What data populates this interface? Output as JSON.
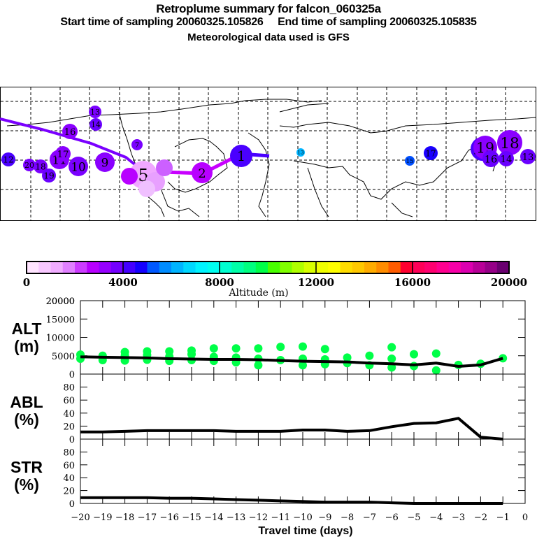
{
  "header": {
    "title": "Retroplume summary for falcon_060325a",
    "start_label": "Start time of sampling 20060325.105826",
    "end_label": "End time of sampling 20060325.105835",
    "met_label": "Meteorological data used is GFS"
  },
  "map": {
    "description": "Retroplume cluster centroids on world map, colored by altitude, labeled by days before sampling",
    "track_color_segments": [
      "#7a00ff",
      "#c800ff",
      "#cc44ff"
    ],
    "clusters": [
      {
        "label": "1",
        "region": "Atlantic",
        "color": "#4a00ff",
        "size": "large"
      },
      {
        "label": "2",
        "region": "Atlantic",
        "color": "#b800ff",
        "size": "large"
      },
      {
        "label": "5",
        "region": "Gulf of Mexico",
        "color": "#f0a8ff",
        "size": "large"
      },
      {
        "label": "7",
        "region": "Canada",
        "color": "#7a00ff",
        "size": "small"
      },
      {
        "label": "9",
        "region": "Pacific",
        "color": "#8a00ff",
        "size": "large"
      },
      {
        "label": "10",
        "region": "Pacific",
        "color": "#7a00ff",
        "size": "large"
      },
      {
        "label": "11",
        "region": "Pacific",
        "color": "#8a00ff",
        "size": "large"
      },
      {
        "label": "12",
        "region": "Pacific",
        "color": "#4a00ff",
        "size": "medium"
      },
      {
        "label": "13",
        "region": "Pacific",
        "color": "#7a00ff",
        "size": "medium"
      },
      {
        "label": "14",
        "region": "Pacific",
        "color": "#6a00ff",
        "size": "medium"
      },
      {
        "label": "16",
        "region": "Pacific",
        "color": "#8a00ff",
        "size": "medium"
      },
      {
        "label": "17",
        "region": "Pacific",
        "color": "#8a00ff",
        "size": "medium"
      },
      {
        "label": "18",
        "region": "Pacific",
        "color": "#7a00ff",
        "size": "medium"
      },
      {
        "label": "19",
        "region": "Pacific",
        "color": "#6a00ff",
        "size": "medium"
      },
      {
        "label": "20",
        "region": "Pacific",
        "color": "#7a00ff",
        "size": "medium"
      },
      {
        "label": "13",
        "region": "Central Asia",
        "color": "#00b4ff",
        "size": "small"
      },
      {
        "label": "15",
        "region": "Asia",
        "color": "#0050ff",
        "size": "small"
      },
      {
        "label": "17",
        "region": "East Asia",
        "color": "#1a00ff",
        "size": "medium"
      },
      {
        "label": "20",
        "region": "Japan",
        "color": "#4a00ff",
        "size": "large"
      },
      {
        "label": "19",
        "region": "NW Pacific",
        "color": "#8a00ff",
        "size": "large"
      },
      {
        "label": "18",
        "region": "NW Pacific",
        "color": "#8a00ff",
        "size": "large"
      },
      {
        "label": "16",
        "region": "NW Pacific",
        "color": "#6a00ff",
        "size": "medium"
      },
      {
        "label": "14",
        "region": "NW Pacific",
        "color": "#6a00ff",
        "size": "medium"
      },
      {
        "label": "13",
        "region": "NW Pacific",
        "color": "#6a00ff",
        "size": "medium"
      }
    ]
  },
  "colorbar": {
    "title": "Altitude (m)",
    "tick_labels": [
      "0",
      "4000",
      "8000",
      "12000",
      "16000",
      "20000"
    ],
    "colors": [
      "#ffe4ff",
      "#f8c8ff",
      "#f0acff",
      "#e080ff",
      "#cc3cff",
      "#b800ff",
      "#9600ff",
      "#7400ff",
      "#4400ff",
      "#1400ff",
      "#0058ff",
      "#008cff",
      "#00b4ff",
      "#00d8ff",
      "#00f4ff",
      "#00fff0",
      "#00ffd0",
      "#00ffa8",
      "#00ff80",
      "#00ff48",
      "#48ff00",
      "#80ff00",
      "#b0ff00",
      "#d8ff00",
      "#f0ff00",
      "#ffff00",
      "#ffdc00",
      "#ffc800",
      "#ffac00",
      "#ff8c00",
      "#ff5c00",
      "#ff0030",
      "#ff0058",
      "#ff0070",
      "#ff0090",
      "#f800a8",
      "#dc00b0",
      "#b80098",
      "#960088",
      "#6a0070"
    ]
  },
  "chart_data": [
    {
      "type": "line",
      "panel": "ALT",
      "ylabel_line1": "ALT",
      "ylabel_line2": "(m)",
      "ylim": [
        0,
        20000
      ],
      "yticks": [
        0,
        5000,
        10000,
        15000,
        20000
      ],
      "ytick_labels": [
        "0",
        "5000",
        "10000",
        "15000",
        "20000"
      ],
      "xlim": [
        -20,
        0
      ],
      "x": [
        -20,
        -19,
        -18,
        -17,
        -16,
        -15,
        -14,
        -13,
        -12,
        -11,
        -10,
        -9,
        -8,
        -7,
        -6,
        -5,
        -4,
        -3,
        -2,
        -1
      ],
      "series": [
        {
          "name": "mean altitude",
          "color": "#000000",
          "values": [
            4700,
            4600,
            4500,
            4400,
            4200,
            4100,
            4000,
            4000,
            3900,
            3700,
            3500,
            3400,
            3300,
            3000,
            2800,
            2500,
            3000,
            2100,
            2500,
            4300
          ]
        }
      ],
      "scatter": {
        "name": "cluster altitudes",
        "color": "#00ff48",
        "points": [
          {
            "x": -20,
            "y": 4200
          },
          {
            "x": -20,
            "y": 5300
          },
          {
            "x": -19,
            "y": 3800
          },
          {
            "x": -19,
            "y": 5000
          },
          {
            "x": -18,
            "y": 3700
          },
          {
            "x": -18,
            "y": 5000
          },
          {
            "x": -18,
            "y": 6000
          },
          {
            "x": -17,
            "y": 3900
          },
          {
            "x": -17,
            "y": 5200
          },
          {
            "x": -17,
            "y": 6200
          },
          {
            "x": -16,
            "y": 3600
          },
          {
            "x": -16,
            "y": 4800
          },
          {
            "x": -16,
            "y": 6200
          },
          {
            "x": -15,
            "y": 3800
          },
          {
            "x": -15,
            "y": 5400
          },
          {
            "x": -15,
            "y": 6400
          },
          {
            "x": -14,
            "y": 3600
          },
          {
            "x": -14,
            "y": 4700
          },
          {
            "x": -14,
            "y": 7000
          },
          {
            "x": -13,
            "y": 3200
          },
          {
            "x": -13,
            "y": 4500
          },
          {
            "x": -13,
            "y": 7000
          },
          {
            "x": -12,
            "y": 2400
          },
          {
            "x": -12,
            "y": 4200
          },
          {
            "x": -12,
            "y": 7000
          },
          {
            "x": -11,
            "y": 3800
          },
          {
            "x": -11,
            "y": 7400
          },
          {
            "x": -10,
            "y": 2400
          },
          {
            "x": -10,
            "y": 4200
          },
          {
            "x": -10,
            "y": 7500
          },
          {
            "x": -9,
            "y": 2700
          },
          {
            "x": -9,
            "y": 4000
          },
          {
            "x": -9,
            "y": 6800
          },
          {
            "x": -8,
            "y": 3000
          },
          {
            "x": -8,
            "y": 4500
          },
          {
            "x": -7,
            "y": 2400
          },
          {
            "x": -7,
            "y": 5000
          },
          {
            "x": -6,
            "y": 1800
          },
          {
            "x": -6,
            "y": 4200
          },
          {
            "x": -6,
            "y": 7300
          },
          {
            "x": -5,
            "y": 2200
          },
          {
            "x": -5,
            "y": 5400
          },
          {
            "x": -4,
            "y": 1000
          },
          {
            "x": -4,
            "y": 5600
          },
          {
            "x": -3,
            "y": 2500
          },
          {
            "x": -2,
            "y": 2800
          },
          {
            "x": -1,
            "y": 4300
          }
        ]
      }
    },
    {
      "type": "line",
      "panel": "ABL",
      "ylabel_line1": "ABL",
      "ylabel_line2": "(%)",
      "ylim": [
        0,
        100
      ],
      "yticks": [
        0,
        20,
        40,
        60,
        80
      ],
      "ytick_labels": [
        "0",
        "20",
        "40",
        "60",
        "80"
      ],
      "xlim": [
        -20,
        0
      ],
      "x": [
        -20,
        -19,
        -18,
        -17,
        -16,
        -15,
        -14,
        -13,
        -12,
        -11,
        -10,
        -9,
        -8,
        -7,
        -6,
        -5,
        -4,
        -3,
        -2,
        -1
      ],
      "series": [
        {
          "name": "fraction in boundary layer",
          "color": "#000000",
          "values": [
            11,
            11,
            12,
            13,
            13,
            13,
            13,
            12,
            12,
            12,
            14,
            14,
            12,
            13,
            19,
            24,
            25,
            32,
            3,
            0
          ]
        }
      ]
    },
    {
      "type": "line",
      "panel": "STR",
      "ylabel_line1": "STR",
      "ylabel_line2": "(%)",
      "ylim": [
        0,
        100
      ],
      "yticks": [
        0,
        20,
        40,
        60,
        80
      ],
      "ytick_labels": [
        "0",
        "20",
        "40",
        "60",
        "80"
      ],
      "xlim": [
        -20,
        0
      ],
      "xticks": [
        -20,
        -19,
        -18,
        -17,
        -16,
        -15,
        -14,
        -13,
        -12,
        -11,
        -10,
        -9,
        -8,
        -7,
        -6,
        -5,
        -4,
        -3,
        -2,
        -1,
        0
      ],
      "xtick_labels": [
        "-20",
        "-19",
        "-18",
        "-17",
        "-16",
        "-15",
        "-14",
        "-13",
        "-12",
        "-11",
        "-10",
        "-9",
        "-8",
        "-7",
        "-6",
        "-5",
        "-4",
        "-3",
        "-2",
        "-1",
        "0"
      ],
      "xlabel": "Travel time (days)",
      "x": [
        -20,
        -19,
        -18,
        -17,
        -16,
        -15,
        -14,
        -13,
        -12,
        -11,
        -10,
        -9,
        -8,
        -7,
        -6,
        -5,
        -4,
        -3,
        -2,
        -1
      ],
      "series": [
        {
          "name": "fraction in stratosphere",
          "color": "#000000",
          "values": [
            9,
            9,
            9,
            9,
            8,
            8,
            7,
            6,
            5,
            4,
            3,
            2,
            2,
            2,
            1,
            0,
            0,
            0,
            0,
            0
          ]
        }
      ]
    }
  ]
}
